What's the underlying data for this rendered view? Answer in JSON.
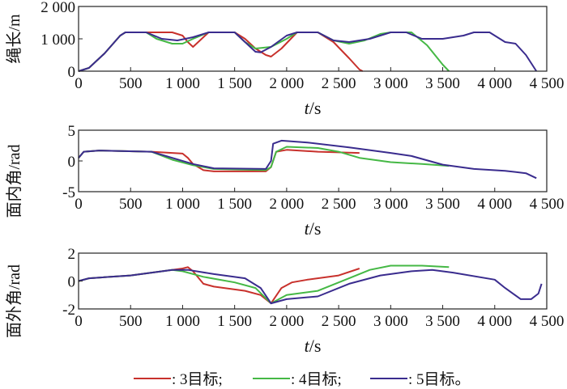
{
  "chart_data": [
    {
      "type": "line",
      "ylabel": "绳长/m",
      "xlabel_var": "t",
      "xlabel_unit": "/s",
      "xlim": [
        0,
        4500
      ],
      "ylim": [
        0,
        2000
      ],
      "xticks": [
        0,
        500,
        1000,
        1500,
        2000,
        2500,
        3000,
        3500,
        4000,
        4500
      ],
      "xtick_labels": [
        "0",
        "500",
        "1 000",
        "1 500",
        "2 000",
        "2 500",
        "3 000",
        "3 500",
        "4 000",
        "4 500"
      ],
      "yticks": [
        0,
        1000,
        2000
      ],
      "ytick_labels": [
        "0",
        "1 000",
        "2 000"
      ],
      "series": [
        {
          "name": "3目标",
          "x": [
            0,
            100,
            250,
            400,
            450,
            900,
            1000,
            1050,
            1100,
            1150,
            1250,
            1500,
            1600,
            1700,
            1800,
            1850,
            1950,
            2100,
            2300,
            2450,
            2600,
            2700,
            2730
          ],
          "y": [
            0,
            100,
            550,
            1100,
            1200,
            1200,
            1100,
            900,
            750,
            900,
            1200,
            1200,
            1000,
            700,
            500,
            450,
            700,
            1200,
            1200,
            900,
            400,
            50,
            0
          ]
        },
        {
          "name": "4目标",
          "x": [
            0,
            100,
            250,
            400,
            450,
            650,
            750,
            900,
            1000,
            1100,
            1250,
            1500,
            1600,
            1700,
            1850,
            2000,
            2100,
            2300,
            2450,
            2600,
            2750,
            2900,
            3000,
            3200,
            3350,
            3500,
            3560
          ],
          "y": [
            0,
            100,
            550,
            1100,
            1200,
            1200,
            1000,
            850,
            850,
            1000,
            1200,
            1200,
            900,
            700,
            750,
            1000,
            1200,
            1200,
            950,
            850,
            950,
            1150,
            1200,
            1200,
            800,
            200,
            0
          ]
        },
        {
          "name": "5目标",
          "x": [
            0,
            100,
            250,
            400,
            450,
            650,
            800,
            950,
            1100,
            1250,
            1500,
            1600,
            1700,
            1750,
            1850,
            2000,
            2100,
            2300,
            2450,
            2600,
            2800,
            3000,
            3150,
            3300,
            3500,
            3700,
            3800,
            3950,
            4100,
            4200,
            4300,
            4400
          ],
          "y": [
            0,
            100,
            550,
            1100,
            1200,
            1200,
            1000,
            950,
            1050,
            1200,
            1200,
            900,
            600,
            580,
            750,
            1100,
            1200,
            1200,
            950,
            900,
            1000,
            1200,
            1200,
            1000,
            1000,
            1100,
            1200,
            1200,
            900,
            850,
            500,
            0
          ]
        }
      ]
    },
    {
      "type": "line",
      "ylabel": "面内角/rad",
      "xlabel_var": "t",
      "xlabel_unit": "/s",
      "xlim": [
        0,
        4500
      ],
      "ylim": [
        -5,
        5
      ],
      "xticks": [
        0,
        500,
        1000,
        1500,
        2000,
        2500,
        3000,
        3500,
        4000,
        4500
      ],
      "xtick_labels": [
        "0",
        "500",
        "1 000",
        "1 500",
        "2 000",
        "2 500",
        "3 000",
        "3 500",
        "4 000",
        "4 500"
      ],
      "yticks": [
        -5,
        0,
        5
      ],
      "ytick_labels": [
        "-5",
        "0",
        "5"
      ],
      "series": [
        {
          "name": "3目标",
          "x": [
            0,
            50,
            200,
            700,
            900,
            1000,
            1050,
            1100,
            1200,
            1300,
            1800,
            1850,
            1900,
            2000,
            2300,
            2700
          ],
          "y": [
            0.5,
            1.5,
            1.7,
            1.5,
            1.3,
            1.2,
            0.5,
            -0.5,
            -1.5,
            -1.7,
            -1.7,
            -1.0,
            1.5,
            1.8,
            1.5,
            1.3
          ]
        },
        {
          "name": "4目标",
          "x": [
            0,
            50,
            200,
            700,
            900,
            1100,
            1300,
            1800,
            1850,
            1900,
            2000,
            2300,
            2500,
            2700,
            3000,
            3300,
            3560
          ],
          "y": [
            0.5,
            1.5,
            1.7,
            1.5,
            0.2,
            -0.7,
            -1.3,
            -1.5,
            -1.0,
            1.5,
            2.3,
            2.1,
            1.5,
            0.5,
            -0.2,
            -0.5,
            -0.8
          ]
        },
        {
          "name": "5目标",
          "x": [
            0,
            50,
            200,
            700,
            900,
            1100,
            1300,
            1800,
            1850,
            1870,
            1950,
            2200,
            2600,
            3000,
            3200,
            3500,
            3800,
            4100,
            4300,
            4400
          ],
          "y": [
            0.5,
            1.5,
            1.7,
            1.5,
            0.5,
            -0.5,
            -1.2,
            -1.3,
            0,
            2.8,
            3.3,
            3.0,
            2.2,
            1.3,
            0.8,
            -0.6,
            -1.3,
            -1.6,
            -2.0,
            -2.8
          ]
        }
      ]
    },
    {
      "type": "line",
      "ylabel": "面外角/rad",
      "xlabel_var": "t",
      "xlabel_unit": "/s",
      "xlim": [
        0,
        4500
      ],
      "ylim": [
        -2,
        2
      ],
      "xticks": [
        0,
        500,
        1000,
        1500,
        2000,
        2500,
        3000,
        3500,
        4000,
        4500
      ],
      "xtick_labels": [
        "0",
        "500",
        "1 000",
        "1 500",
        "2 000",
        "2 500",
        "3 000",
        "3 500",
        "4 000",
        "4 500"
      ],
      "yticks": [
        -2,
        0,
        2
      ],
      "ytick_labels": [
        "-2",
        "0",
        "2"
      ],
      "series": [
        {
          "name": "3目标",
          "x": [
            0,
            100,
            500,
            900,
            1000,
            1050,
            1100,
            1200,
            1300,
            1600,
            1750,
            1850,
            1950,
            2050,
            2200,
            2500,
            2700
          ],
          "y": [
            0,
            0.2,
            0.4,
            0.8,
            0.9,
            1.0,
            0.7,
            -0.2,
            -0.4,
            -0.7,
            -1.0,
            -1.6,
            -0.5,
            -0.1,
            0.1,
            0.4,
            0.9
          ]
        },
        {
          "name": "4目标",
          "x": [
            0,
            100,
            500,
            900,
            1000,
            1200,
            1500,
            1700,
            1850,
            2000,
            2300,
            2600,
            2800,
            3000,
            3300,
            3560
          ],
          "y": [
            0,
            0.2,
            0.4,
            0.8,
            0.7,
            0.3,
            -0.1,
            -0.5,
            -1.6,
            -1.0,
            -0.7,
            0.2,
            0.8,
            1.1,
            1.1,
            1.0
          ]
        },
        {
          "name": "5目标",
          "x": [
            0,
            100,
            500,
            900,
            1050,
            1300,
            1600,
            1750,
            1850,
            2000,
            2300,
            2600,
            2900,
            3200,
            3400,
            3600,
            4000,
            4100,
            4250,
            4350,
            4420,
            4450
          ],
          "y": [
            0,
            0.2,
            0.4,
            0.8,
            0.8,
            0.5,
            0.2,
            -0.5,
            -1.6,
            -1.3,
            -1.1,
            -0.2,
            0.4,
            0.7,
            0.8,
            0.6,
            0.1,
            -0.5,
            -1.3,
            -1.3,
            -0.9,
            -0.2
          ]
        }
      ]
    }
  ],
  "legend": {
    "items": [
      {
        "label": ": 3目标;",
        "color": "#c8312c"
      },
      {
        "label": ": 4目标;",
        "color": "#45b845"
      },
      {
        "label": ": 5目标。",
        "color": "#3a2c8e"
      }
    ]
  },
  "colors": [
    "#c8312c",
    "#45b845",
    "#3a2c8e"
  ]
}
